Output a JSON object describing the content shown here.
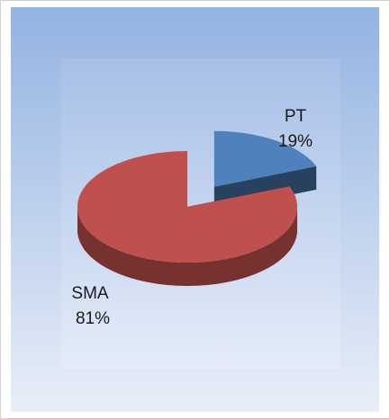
{
  "chart_data": {
    "type": "pie",
    "categories": [
      "PT",
      "SMA"
    ],
    "values": [
      19,
      81
    ],
    "value_labels": [
      "19%",
      "81%"
    ],
    "colors": [
      "#4f81bd",
      "#c0504d"
    ],
    "exploded": [
      true,
      false
    ]
  }
}
